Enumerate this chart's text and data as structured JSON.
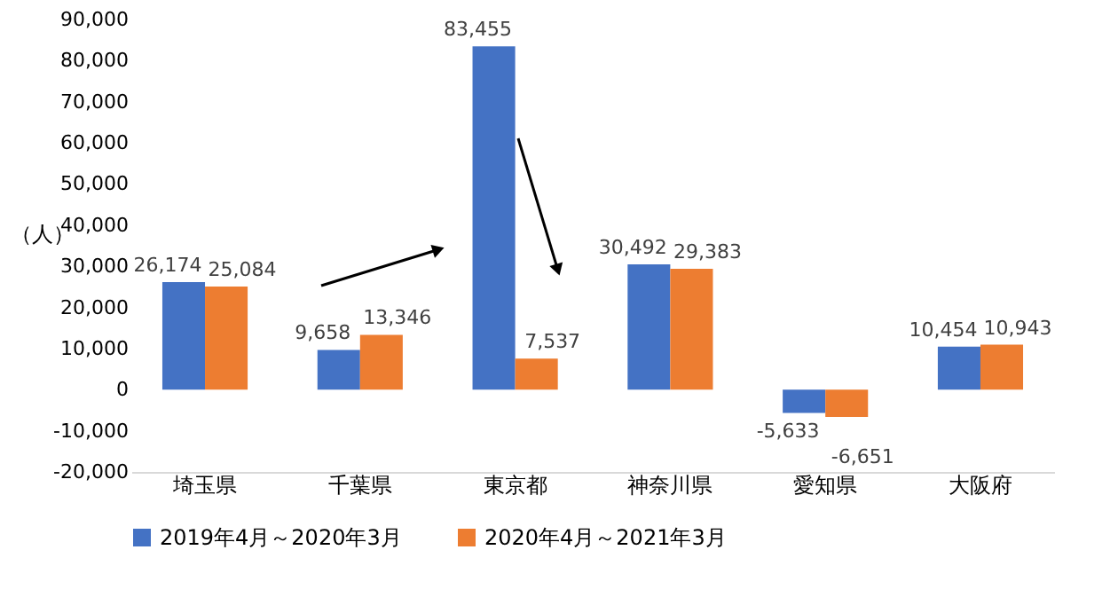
{
  "chart_data": {
    "type": "bar",
    "ylabel": "（人）",
    "categories": [
      "埼玉県",
      "千葉県",
      "東京都",
      "神奈川県",
      "愛知県",
      "大阪府"
    ],
    "series": [
      {
        "name": "2019年4月～2020年3月",
        "color": "#4472c4",
        "values": [
          26174,
          9658,
          83455,
          30492,
          -5633,
          10454
        ],
        "value_labels": [
          "26,174",
          "9,658",
          "83,455",
          "30,492",
          "-5,633",
          "10,454"
        ]
      },
      {
        "name": "2020年4月～2021年3月",
        "color": "#ed7d31",
        "values": [
          25084,
          13346,
          7537,
          29383,
          -6651,
          10943
        ],
        "value_labels": [
          "25,084",
          "13,346",
          "7,537",
          "29,383",
          "-6,651",
          "10,943"
        ]
      }
    ],
    "ylim": [
      -20000,
      90000
    ],
    "yticks": [
      {
        "value": -20000,
        "label": "-20,000"
      },
      {
        "value": -10000,
        "label": "-10,000"
      },
      0,
      {
        "value": 10000,
        "label": "10,000"
      },
      {
        "value": 20000,
        "label": "20,000"
      },
      {
        "value": 30000,
        "label": "30,000"
      },
      {
        "value": 40000,
        "label": "40,000"
      },
      {
        "value": 50000,
        "label": "50,000"
      },
      {
        "value": 60000,
        "label": "60,000"
      },
      {
        "value": 70000,
        "label": "70,000"
      },
      {
        "value": 80000,
        "label": "80,000"
      },
      {
        "value": 90000,
        "label": "90,000"
      }
    ],
    "grid": false,
    "legend": "bottom"
  }
}
